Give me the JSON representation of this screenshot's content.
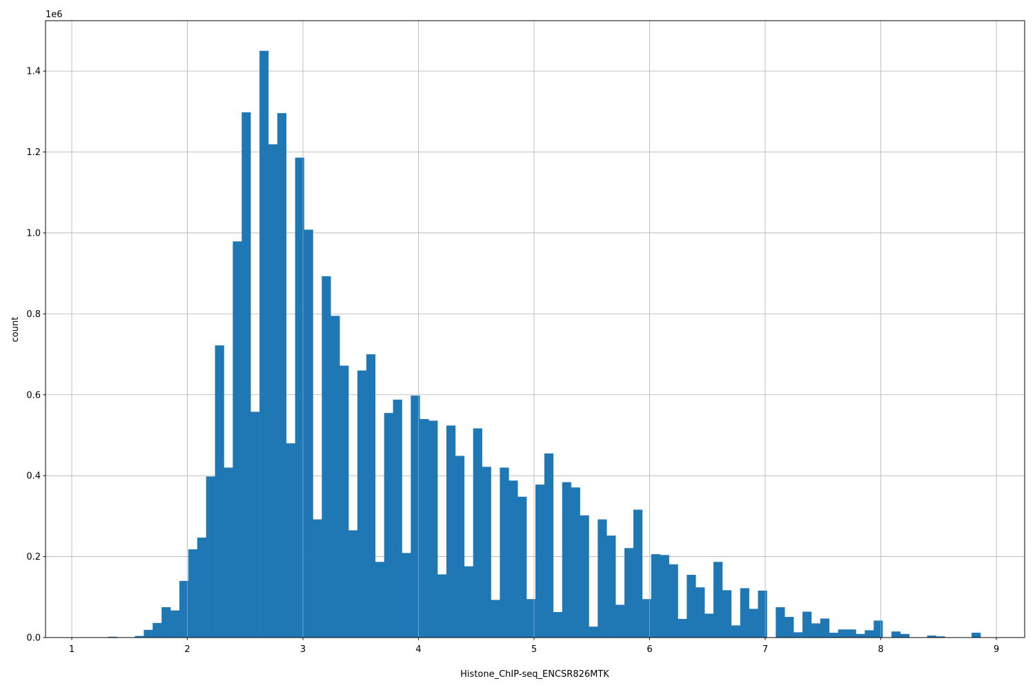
{
  "chart_data": {
    "type": "bar",
    "subtype": "histogram",
    "xlabel": "Histone_ChIP-seq_ENCSR826MTK",
    "ylabel": "count",
    "y_offset_label": "1e6",
    "xlim": [
      0.773,
      9.245
    ],
    "ylim": [
      0,
      1.5245
    ],
    "y_scale": 1000000,
    "grid": true,
    "bar_color": "#1f77b4",
    "bin_start": 1.161,
    "bin_width": 0.07702,
    "xticks": [
      1,
      2,
      3,
      4,
      5,
      6,
      7,
      8,
      9
    ],
    "xtick_labels": [
      "1",
      "2",
      "3",
      "4",
      "5",
      "6",
      "7",
      "8",
      "9"
    ],
    "yticks": [
      0,
      0.2,
      0.4,
      0.6,
      0.8,
      1.0,
      1.2,
      1.4
    ],
    "ytick_labels": [
      "0.0",
      "0.2",
      "0.4",
      "0.6",
      "0.8",
      "1.0",
      "1.2",
      "1.4"
    ],
    "values": [
      0,
      0,
      0.002,
      0,
      0,
      0.004,
      0.019,
      0.036,
      0.075,
      0.067,
      0.14,
      0.218,
      0.247,
      0.398,
      0.722,
      0.42,
      0.979,
      1.298,
      0.558,
      1.45,
      1.219,
      1.296,
      0.48,
      1.186,
      1.008,
      0.292,
      0.893,
      0.795,
      0.672,
      0.265,
      0.66,
      0.7,
      0.187,
      0.555,
      0.588,
      0.209,
      0.598,
      0.54,
      0.536,
      0.156,
      0.524,
      0.449,
      0.176,
      0.517,
      0.422,
      0.093,
      0.42,
      0.388,
      0.348,
      0.095,
      0.378,
      0.455,
      0.063,
      0.384,
      0.371,
      0.302,
      0.027,
      0.292,
      0.252,
      0.081,
      0.221,
      0.316,
      0.095,
      0.206,
      0.204,
      0.181,
      0.046,
      0.155,
      0.124,
      0.059,
      0.187,
      0.117,
      0.03,
      0.122,
      0.071,
      0.116,
      0,
      0.075,
      0.051,
      0.013,
      0.064,
      0.035,
      0.047,
      0.012,
      0.02,
      0.02,
      0.009,
      0.018,
      0.042,
      0,
      0.015,
      0.009,
      0,
      0,
      0.005,
      0.003,
      0,
      0,
      0,
      0.012
    ]
  }
}
